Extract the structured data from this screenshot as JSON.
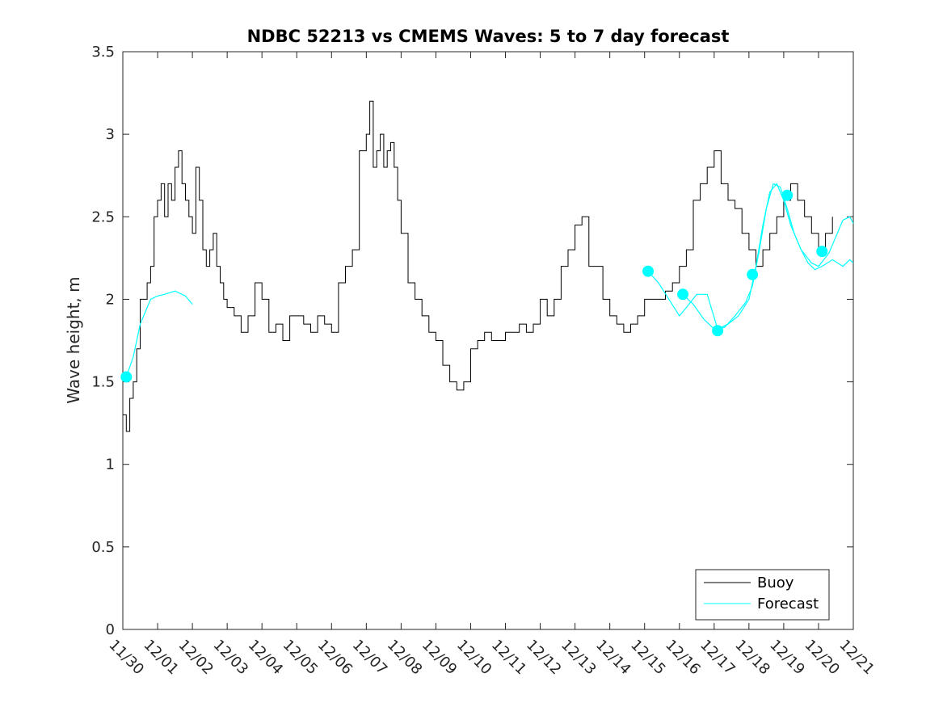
{
  "chart_data": {
    "type": "line",
    "title": "NDBC 52213 vs CMEMS Waves: 5 to 7 day forecast",
    "xlabel": "",
    "ylabel": "Wave height, m",
    "xlim": [
      "11/30",
      "12/21"
    ],
    "ylim": [
      0,
      3.5
    ],
    "x_ticks": [
      "11/30",
      "12/01",
      "12/02",
      "12/03",
      "12/04",
      "12/05",
      "12/06",
      "12/07",
      "12/08",
      "12/09",
      "12/10",
      "12/11",
      "12/12",
      "12/13",
      "12/14",
      "12/15",
      "12/16",
      "12/17",
      "12/18",
      "12/19",
      "12/20",
      "12/21"
    ],
    "y_ticks": [
      0,
      0.5,
      1,
      1.5,
      2,
      2.5,
      3,
      3.5
    ],
    "grid": false,
    "legend_position": "bottom-right",
    "series": [
      {
        "name": "Buoy",
        "color": "#000000",
        "x_days": [
          0,
          0.1,
          0.2,
          0.3,
          0.4,
          0.5,
          0.6,
          0.7,
          0.8,
          0.9,
          1.0,
          1.1,
          1.2,
          1.3,
          1.4,
          1.5,
          1.6,
          1.7,
          1.8,
          1.9,
          2.0,
          2.1,
          2.2,
          2.3,
          2.4,
          2.5,
          2.6,
          2.7,
          2.8,
          2.9,
          3.0,
          3.2,
          3.4,
          3.6,
          3.8,
          4.0,
          4.2,
          4.4,
          4.6,
          4.8,
          5.0,
          5.2,
          5.4,
          5.6,
          5.8,
          6.0,
          6.2,
          6.4,
          6.6,
          6.8,
          7.0,
          7.1,
          7.2,
          7.3,
          7.4,
          7.5,
          7.6,
          7.7,
          7.8,
          7.9,
          8.0,
          8.2,
          8.4,
          8.6,
          8.8,
          9.0,
          9.2,
          9.4,
          9.6,
          9.8,
          10.0,
          10.2,
          10.4,
          10.6,
          10.8,
          11.0,
          11.2,
          11.4,
          11.6,
          11.8,
          12.0,
          12.2,
          12.4,
          12.6,
          12.8,
          13.0,
          13.2,
          13.4,
          13.6,
          13.8,
          14.0,
          14.2,
          14.4,
          14.6,
          14.8,
          15.0,
          15.2,
          15.4,
          15.6,
          15.8,
          16.0,
          16.2,
          16.4,
          16.6,
          16.8,
          17.0,
          17.2,
          17.4,
          17.6,
          17.8,
          18.0,
          18.2,
          18.4,
          18.6,
          18.8,
          19.0,
          19.2,
          19.4,
          19.6,
          19.8,
          20.0,
          20.2,
          20.4
        ],
        "values": [
          1.3,
          1.2,
          1.4,
          1.5,
          1.7,
          2.0,
          2.0,
          2.1,
          2.2,
          2.5,
          2.6,
          2.7,
          2.5,
          2.7,
          2.6,
          2.8,
          2.9,
          2.7,
          2.6,
          2.5,
          2.4,
          2.8,
          2.6,
          2.3,
          2.2,
          2.3,
          2.4,
          2.2,
          2.1,
          2.0,
          1.95,
          1.9,
          1.8,
          1.9,
          2.1,
          2.0,
          1.8,
          1.85,
          1.75,
          1.9,
          1.9,
          1.85,
          1.8,
          1.9,
          1.85,
          1.8,
          2.1,
          2.2,
          2.3,
          2.9,
          3.0,
          3.2,
          2.8,
          2.9,
          3.0,
          2.8,
          2.9,
          2.95,
          2.8,
          2.6,
          2.4,
          2.1,
          2.0,
          1.9,
          1.8,
          1.75,
          1.6,
          1.5,
          1.45,
          1.5,
          1.7,
          1.75,
          1.8,
          1.75,
          1.75,
          1.8,
          1.8,
          1.85,
          1.8,
          1.85,
          2.0,
          1.9,
          2.0,
          2.2,
          2.3,
          2.45,
          2.5,
          2.2,
          2.2,
          2.0,
          1.9,
          1.85,
          1.8,
          1.85,
          1.9,
          2.0,
          2.0,
          2.0,
          2.05,
          2.1,
          2.2,
          2.3,
          2.6,
          2.7,
          2.8,
          2.9,
          2.7,
          2.6,
          2.55,
          2.4,
          2.3,
          2.2,
          2.3,
          2.4,
          2.5,
          2.6,
          2.7,
          2.6,
          2.5,
          2.4,
          2.3,
          2.4,
          2.5
        ]
      },
      {
        "name": "Forecast",
        "color": "#00ffff",
        "segments": [
          {
            "x_days": [
              0.1,
              0.3,
              0.5,
              0.8,
              1.0,
              1.2,
              1.5,
              1.8,
              2.0
            ],
            "values": [
              1.53,
              1.65,
              1.85,
              2.0,
              2.02,
              2.03,
              2.05,
              2.02,
              1.97
            ]
          },
          {
            "x_days": [
              15.1,
              15.4,
              15.7,
              16.0,
              16.2,
              16.5,
              16.8,
              17.1,
              17.4,
              17.7,
              18.0,
              18.2,
              18.4,
              18.6,
              18.8,
              19.0,
              19.2,
              19.5,
              19.8,
              20.0,
              20.3,
              20.5,
              20.7,
              20.9,
              21.0
            ],
            "values": [
              2.17,
              2.1,
              2.0,
              1.9,
              1.95,
              2.03,
              2.03,
              1.82,
              1.85,
              1.9,
              2.0,
              2.2,
              2.45,
              2.65,
              2.7,
              2.6,
              2.45,
              2.3,
              2.22,
              2.2,
              2.28,
              2.38,
              2.48,
              2.5,
              2.46
            ]
          },
          {
            "x_days": [
              16.1,
              16.4,
              16.7,
              17.0,
              17.3,
              17.6,
              17.9,
              18.1,
              18.3,
              18.5,
              18.7,
              18.9,
              19.1,
              19.3,
              19.5,
              19.7,
              19.9,
              20.1,
              20.4,
              20.7,
              20.9,
              21.0
            ],
            "values": [
              2.03,
              1.97,
              1.88,
              1.82,
              1.83,
              1.9,
              1.98,
              2.08,
              2.3,
              2.55,
              2.7,
              2.68,
              2.55,
              2.4,
              2.3,
              2.22,
              2.18,
              2.2,
              2.24,
              2.2,
              2.24,
              2.22
            ]
          }
        ],
        "markers": {
          "x_days": [
            0.1,
            15.1,
            16.1,
            17.1,
            18.1,
            19.1,
            20.1
          ],
          "values": [
            1.53,
            2.17,
            2.03,
            1.81,
            2.15,
            2.63,
            2.29
          ]
        }
      }
    ]
  }
}
